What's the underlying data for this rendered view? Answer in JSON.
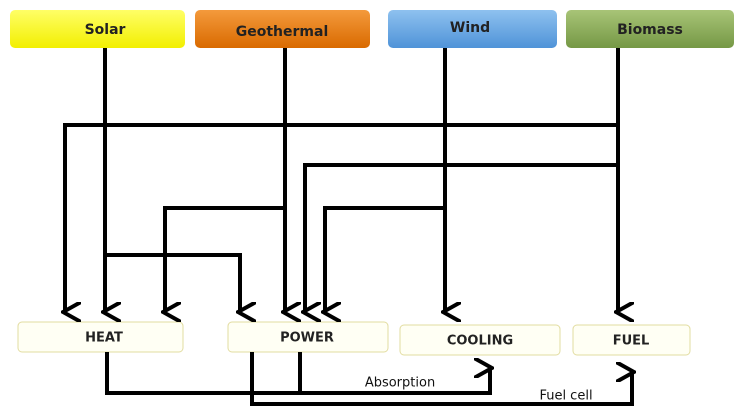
{
  "sources": [
    "Solar",
    "Geothermal",
    "Wind",
    "Biomass"
  ],
  "outputs": [
    "HEAT",
    "POWER",
    "COOLING",
    "FUEL"
  ],
  "conversions": [
    "Absorption",
    "Fuel cell"
  ]
}
